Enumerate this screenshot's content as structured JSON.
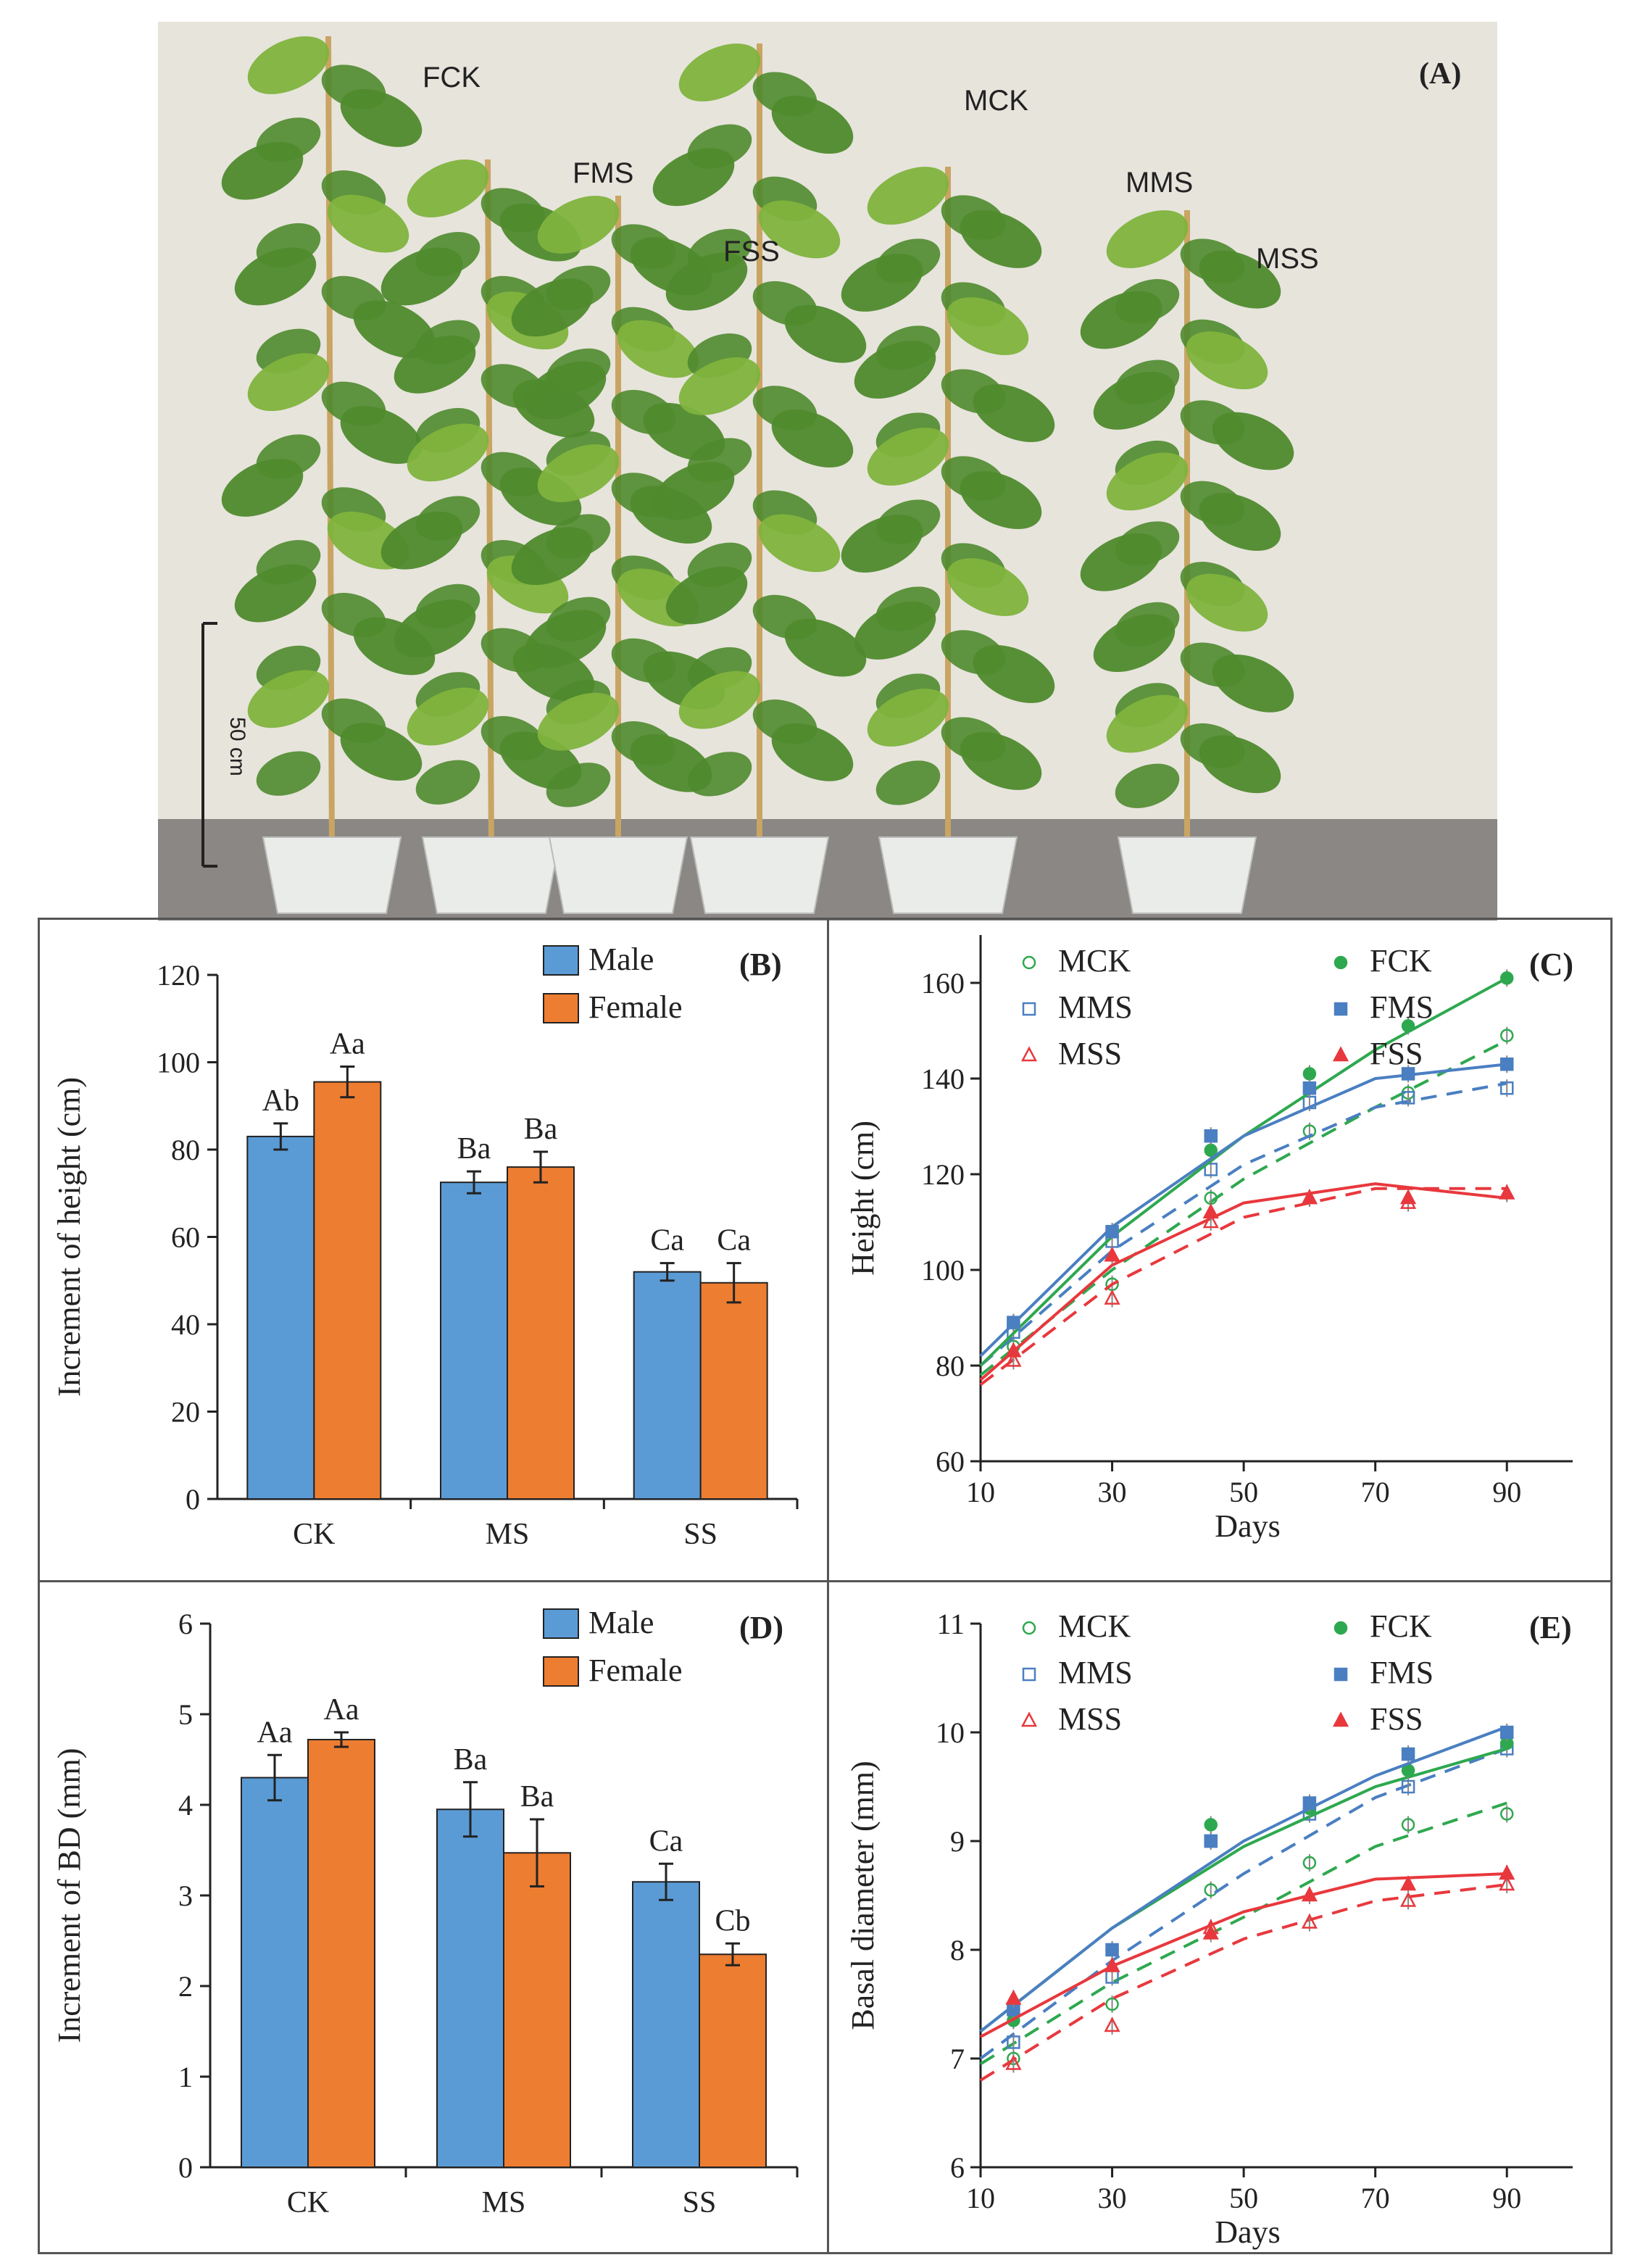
{
  "figure": {
    "panelA": {
      "tag": "(A)",
      "plant_labels": [
        "FCK",
        "FMS",
        "FSS",
        "MCK",
        "MMS",
        "MSS"
      ],
      "scale_bar": "50 cm",
      "colors": {
        "wall": "#e7e4dc",
        "floor": "#8a8784",
        "leaf": "#4f8a2d",
        "leaf_light": "#7fb33d",
        "stem": "#c9a463",
        "pot": "#e9ece9"
      }
    },
    "colors": {
      "male_bar": "#5b9bd5",
      "female_bar": "#ed7d31",
      "green": "#2ea84f",
      "blue": "#4a7fc1",
      "red": "#e8383d",
      "frame": "#555555"
    }
  },
  "chart_data": [
    {
      "panel": "(B)",
      "type": "bar",
      "categories": [
        "CK",
        "MS",
        "SS"
      ],
      "ylabel": "Increment of height (cm)",
      "xlabel": "",
      "ylim": [
        0,
        120
      ],
      "yticks": [
        0,
        20,
        40,
        60,
        80,
        100,
        120
      ],
      "legend": "top-right",
      "series": [
        {
          "name": "Male",
          "values": [
            83,
            72.5,
            52
          ],
          "errors": [
            3,
            2.5,
            2
          ],
          "letters": [
            "Ab",
            "Ba",
            "Ca"
          ]
        },
        {
          "name": "Female",
          "values": [
            95.5,
            76,
            49.5
          ],
          "errors": [
            3.5,
            3.5,
            4.5
          ],
          "letters": [
            "Aa",
            "Ba",
            "Ca"
          ]
        }
      ]
    },
    {
      "panel": "(C)",
      "type": "scatter",
      "xlabel": "Days",
      "ylabel": "Height (cm)",
      "xlim": [
        10,
        100
      ],
      "ylim": [
        60,
        170
      ],
      "xticks": [
        10,
        30,
        50,
        70,
        90
      ],
      "yticks": [
        60,
        80,
        100,
        120,
        140,
        160
      ],
      "legend": "top",
      "x": [
        15,
        30,
        45,
        60,
        75,
        90
      ],
      "series": [
        {
          "name": "MCK",
          "color": "green",
          "marker": "circle-open",
          "fit": "dashed",
          "values": [
            84,
            97,
            115,
            129,
            137,
            149
          ],
          "fit_points": [
            [
              10,
              78
            ],
            [
              30,
              100
            ],
            [
              50,
              119
            ],
            [
              70,
              134
            ],
            [
              90,
              148
            ]
          ]
        },
        {
          "name": "MMS",
          "color": "blue",
          "marker": "square-open",
          "fit": "dashed",
          "values": [
            87,
            106,
            121,
            135,
            136,
            138
          ],
          "fit_points": [
            [
              10,
              80
            ],
            [
              30,
              104
            ],
            [
              50,
              122
            ],
            [
              70,
              134
            ],
            [
              90,
              139
            ]
          ]
        },
        {
          "name": "MSS",
          "color": "red",
          "marker": "triangle-open",
          "fit": "dashed",
          "values": [
            81,
            94,
            110,
            115,
            114,
            116
          ],
          "fit_points": [
            [
              10,
              76
            ],
            [
              30,
              97
            ],
            [
              50,
              111
            ],
            [
              70,
              117
            ],
            [
              90,
              117
            ]
          ]
        },
        {
          "name": "FCK",
          "color": "green",
          "marker": "circle-filled",
          "fit": "solid",
          "values": [
            89,
            108,
            125,
            141,
            151,
            161
          ],
          "fit_points": [
            [
              10,
              80
            ],
            [
              30,
              107
            ],
            [
              50,
              128
            ],
            [
              70,
              146
            ],
            [
              90,
              161
            ]
          ]
        },
        {
          "name": "FMS",
          "color": "blue",
          "marker": "square-filled",
          "fit": "solid",
          "values": [
            89,
            108,
            128,
            138,
            141,
            143
          ],
          "fit_points": [
            [
              10,
              82
            ],
            [
              30,
              109
            ],
            [
              50,
              128
            ],
            [
              70,
              140
            ],
            [
              90,
              143
            ]
          ]
        },
        {
          "name": "FSS",
          "color": "red",
          "marker": "triangle-filled",
          "fit": "solid",
          "values": [
            83,
            103,
            112,
            115,
            115,
            116
          ],
          "fit_points": [
            [
              10,
              77
            ],
            [
              30,
              101
            ],
            [
              50,
              114
            ],
            [
              70,
              118
            ],
            [
              90,
              115
            ]
          ]
        }
      ]
    },
    {
      "panel": "(D)",
      "type": "bar",
      "categories": [
        "CK",
        "MS",
        "SS"
      ],
      "ylabel": "Increment of BD (mm)",
      "xlabel": "",
      "ylim": [
        0,
        6
      ],
      "yticks": [
        0,
        1,
        2,
        3,
        4,
        5,
        6
      ],
      "legend": "top-right",
      "series": [
        {
          "name": "Male",
          "values": [
            4.3,
            3.95,
            3.15
          ],
          "errors": [
            0.25,
            0.3,
            0.2
          ],
          "letters": [
            "Aa",
            "Ba",
            "Ca"
          ]
        },
        {
          "name": "Female",
          "values": [
            4.72,
            3.47,
            2.35
          ],
          "errors": [
            0.08,
            0.37,
            0.12
          ],
          "letters": [
            "Aa",
            "Ba",
            "Cb"
          ]
        }
      ]
    },
    {
      "panel": "(E)",
      "type": "scatter",
      "xlabel": "Days",
      "ylabel": "Basal diameter (mm)",
      "xlim": [
        10,
        100
      ],
      "ylim": [
        6,
        11
      ],
      "xticks": [
        10,
        30,
        50,
        70,
        90
      ],
      "yticks": [
        6,
        7,
        8,
        9,
        10,
        11
      ],
      "legend": "top",
      "x": [
        15,
        30,
        45,
        60,
        75,
        90
      ],
      "series": [
        {
          "name": "MCK",
          "color": "green",
          "marker": "circle-open",
          "fit": "dashed",
          "values": [
            7.0,
            7.5,
            8.55,
            8.8,
            9.15,
            9.25
          ],
          "fit_points": [
            [
              10,
              6.95
            ],
            [
              30,
              7.7
            ],
            [
              50,
              8.3
            ],
            [
              70,
              8.95
            ],
            [
              90,
              9.35
            ]
          ]
        },
        {
          "name": "MMS",
          "color": "blue",
          "marker": "square-open",
          "fit": "dashed",
          "values": [
            7.15,
            7.75,
            9.0,
            9.25,
            9.5,
            9.85
          ],
          "fit_points": [
            [
              10,
              7.0
            ],
            [
              30,
              7.9
            ],
            [
              50,
              8.7
            ],
            [
              70,
              9.4
            ],
            [
              90,
              9.85
            ]
          ]
        },
        {
          "name": "MSS",
          "color": "red",
          "marker": "triangle-open",
          "fit": "dashed",
          "values": [
            6.95,
            7.3,
            8.2,
            8.25,
            8.45,
            8.6
          ],
          "fit_points": [
            [
              10,
              6.8
            ],
            [
              30,
              7.55
            ],
            [
              50,
              8.1
            ],
            [
              70,
              8.45
            ],
            [
              90,
              8.6
            ]
          ]
        },
        {
          "name": "FCK",
          "color": "green",
          "marker": "circle-filled",
          "fit": "solid",
          "values": [
            7.35,
            8.0,
            9.15,
            9.3,
            9.65,
            9.9
          ],
          "fit_points": [
            [
              10,
              7.25
            ],
            [
              30,
              8.2
            ],
            [
              50,
              8.95
            ],
            [
              70,
              9.5
            ],
            [
              90,
              9.85
            ]
          ]
        },
        {
          "name": "FMS",
          "color": "blue",
          "marker": "square-filled",
          "fit": "solid",
          "values": [
            7.45,
            8.0,
            9.0,
            9.35,
            9.8,
            10.0
          ],
          "fit_points": [
            [
              10,
              7.25
            ],
            [
              30,
              8.2
            ],
            [
              50,
              9.0
            ],
            [
              70,
              9.6
            ],
            [
              90,
              10.05
            ]
          ]
        },
        {
          "name": "FSS",
          "color": "red",
          "marker": "triangle-filled",
          "fit": "solid",
          "values": [
            7.55,
            7.85,
            8.15,
            8.5,
            8.6,
            8.7
          ],
          "fit_points": [
            [
              10,
              7.2
            ],
            [
              30,
              7.85
            ],
            [
              50,
              8.35
            ],
            [
              70,
              8.65
            ],
            [
              90,
              8.7
            ]
          ]
        }
      ]
    }
  ]
}
